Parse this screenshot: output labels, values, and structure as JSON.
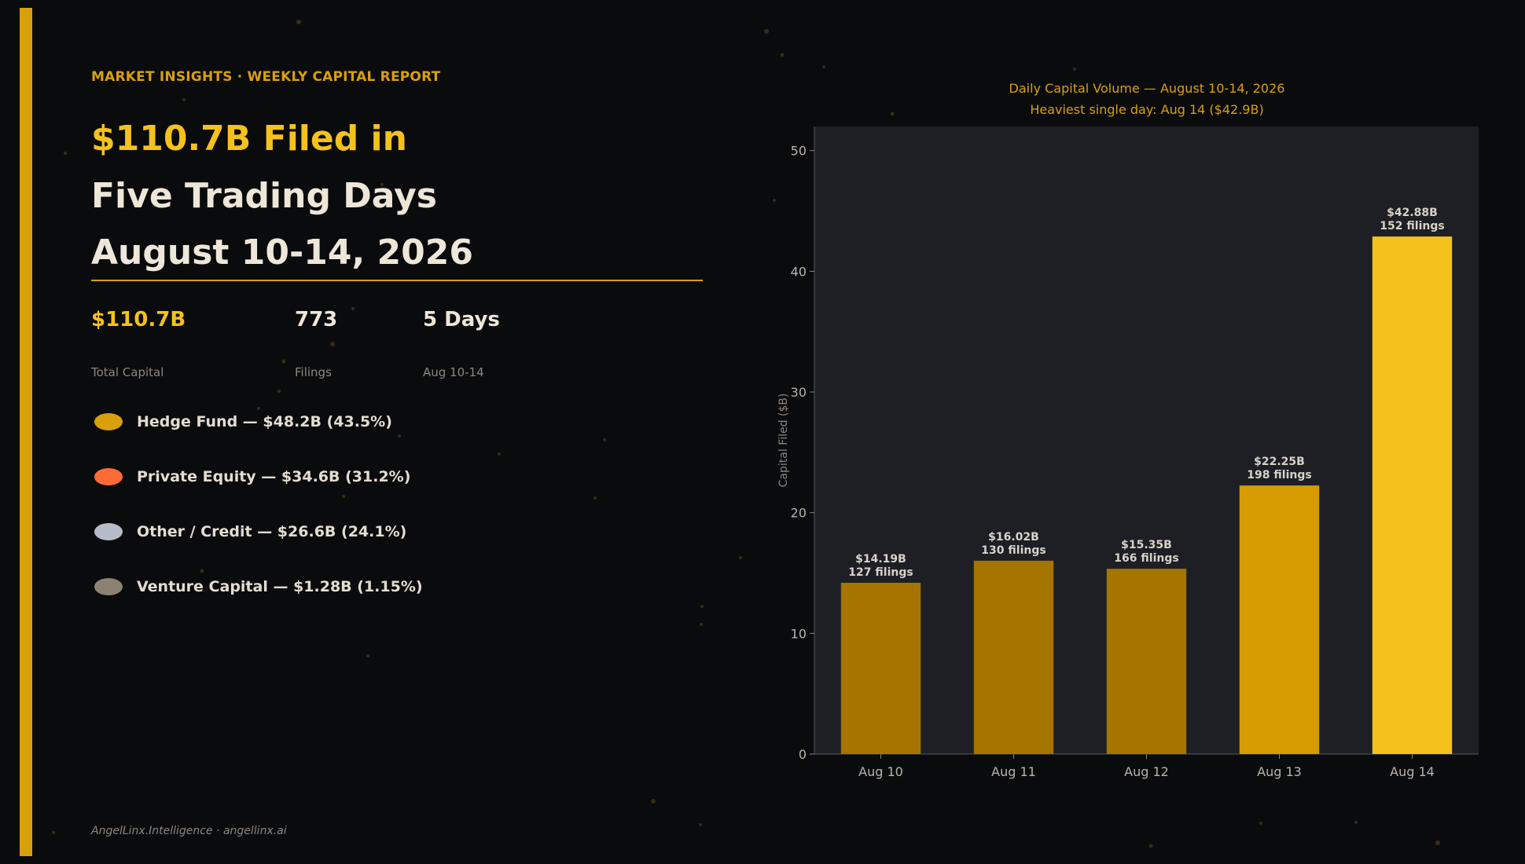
{
  "header": {
    "eyebrow": "MARKET INSIGHTS  ·  WEEKLY CAPITAL REPORT",
    "headline_line1": "$110.7B Filed in",
    "headline_line2": "Five Trading Days",
    "headline_line3": "August 10-14, 2026"
  },
  "stats": [
    {
      "value": "$110.7B",
      "label": "Total Capital",
      "color": "#f5c21b"
    },
    {
      "value": "773",
      "label": "Filings",
      "color": "#eee6d8"
    },
    {
      "value": "5 Days",
      "label": "Aug 10-14",
      "color": "#eee6d8"
    }
  ],
  "breakdown": [
    {
      "label": "Hedge Fund — $48.2B (43.5%)",
      "color": "#d9a00c"
    },
    {
      "label": "Private Equity — $34.6B (31.2%)",
      "color": "#ff6b35"
    },
    {
      "label": "Other / Credit — $26.6B (24.1%)",
      "color": "#b6bcc7"
    },
    {
      "label": "Venture Capital — $1.28B (1.15%)",
      "color": "#8c8274"
    }
  ],
  "footer": "AngelLinx.Intelligence  ·  angellinx.ai",
  "chart_data": {
    "type": "bar",
    "title": "Daily Capital Volume — August 10-14, 2026",
    "subtitle": "Heaviest single day: Aug 14 ($42.9B)",
    "ylabel": "Capital Filed ($B)",
    "xlabel": "",
    "categories": [
      "Aug 10",
      "Aug 11",
      "Aug 12",
      "Aug 13",
      "Aug 14"
    ],
    "values": [
      14.19,
      16.02,
      15.35,
      22.25,
      42.88
    ],
    "data_labels": [
      "$14.19B",
      "$16.02B",
      "$15.35B",
      "$22.25B",
      "$42.88B"
    ],
    "filings_labels": [
      "127 filings",
      "130 filings",
      "166 filings",
      "198 filings",
      "152 filings"
    ],
    "colors": [
      "#a57500",
      "#a57500",
      "#a57500",
      "#d59b00",
      "#f5c21b"
    ],
    "ylim": [
      0,
      52
    ],
    "yticks": [
      0,
      10,
      20,
      30,
      40,
      50
    ],
    "grid": false,
    "legend": "none"
  }
}
